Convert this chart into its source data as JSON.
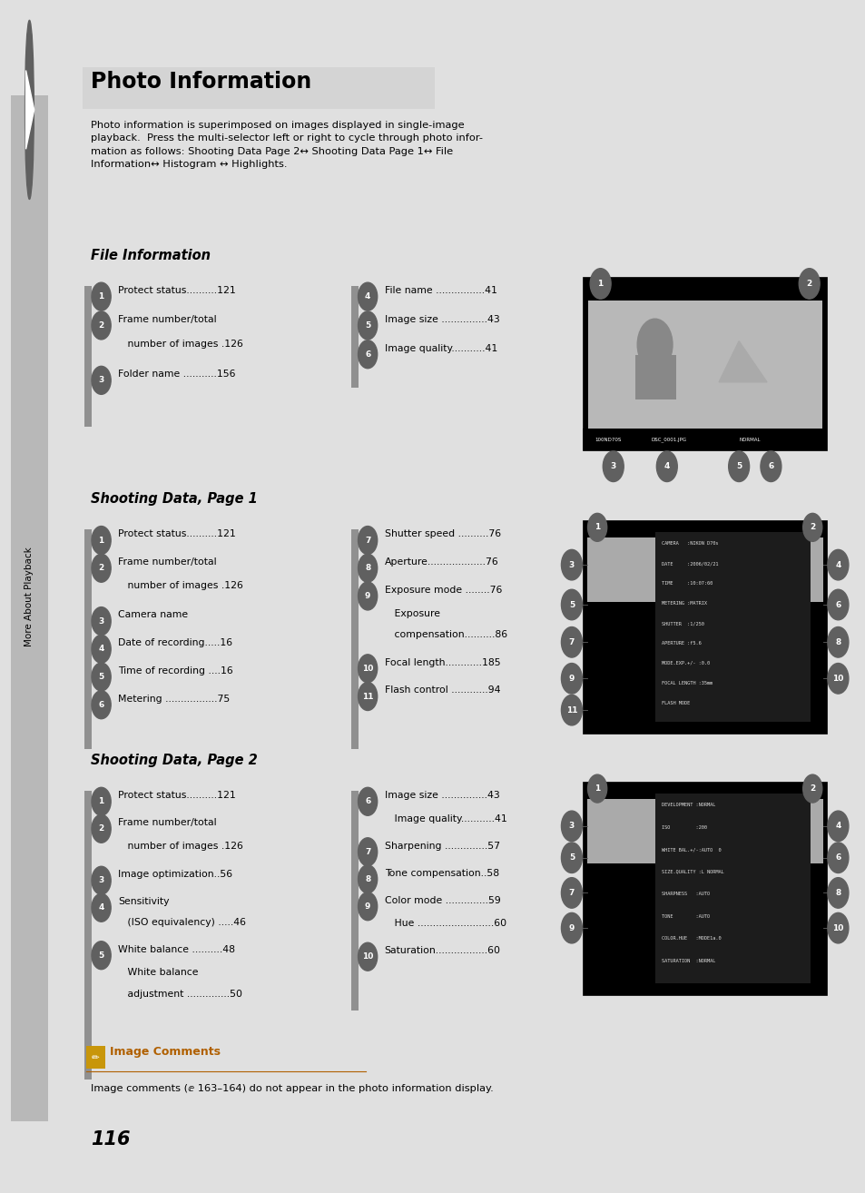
{
  "bg_color": "#e0e0e0",
  "page_bg": "#ffffff",
  "sidebar_color": "#b0b0b0",
  "sidebar_text": "More About Playback",
  "title": "Photo Information",
  "intro_text": "Photo information is superimposed on images displayed in single-image\nplayback.  Press the multi-selector left or right to cycle through photo infor-\nmation as follows: Shooting Data Page 2↔ Shooting Data Page 1↔ File\nInformation↔ Histogram ↔ Highlights.",
  "section1_title": "File Information",
  "section2_title": "Shooting Data, Page 1",
  "section3_title": "Shooting Data, Page 2",
  "note_title": "Image Comments",
  "note_text": "Image comments (ⅇ 163–164) do not appear in the photo information display.",
  "page_number": "116",
  "num_bg_color": "#808080",
  "section1_col1": [
    [
      "1",
      "Protect status..........121",
      0
    ],
    [
      "2",
      "Frame number/total",
      1
    ],
    [
      "",
      "   number of images .126",
      1.85
    ],
    [
      "3",
      "Folder name ...........156",
      2.9
    ]
  ],
  "section1_col2": [
    [
      "4",
      "File name ................41",
      0
    ],
    [
      "5",
      "Image size ...............43",
      1
    ],
    [
      "6",
      "Image quality...........41",
      2
    ]
  ],
  "section2_col1": [
    [
      "1",
      "Protect status..........121",
      0
    ],
    [
      "2",
      "Frame number/total",
      1
    ],
    [
      "",
      "   number of images .126",
      1.85
    ],
    [
      "3",
      "Camera name",
      2.9
    ],
    [
      "4",
      "Date of recording.....16",
      3.9
    ],
    [
      "5",
      "Time of recording ....16",
      4.9
    ],
    [
      "6",
      "Metering .................75",
      5.9
    ]
  ],
  "section2_col2": [
    [
      "7",
      "Shutter speed ..........76",
      0
    ],
    [
      "8",
      "Aperture...................76",
      1
    ],
    [
      "9",
      "Exposure mode ........76",
      2
    ],
    [
      "",
      "   Exposure",
      2.85
    ],
    [
      "",
      "   compensation..........86",
      3.6
    ],
    [
      "10",
      "Focal length............185",
      4.6
    ],
    [
      "11",
      "Flash control ............94",
      5.6
    ]
  ],
  "section3_col1": [
    [
      "1",
      "Protect status..........121",
      0
    ],
    [
      "2",
      "Frame number/total",
      1
    ],
    [
      "",
      "   number of images .126",
      1.85
    ],
    [
      "3",
      "Image optimization..56",
      2.9
    ],
    [
      "4",
      "Sensitivity",
      3.9
    ],
    [
      "",
      "   (ISO equivalency) .....46",
      4.65
    ],
    [
      "5",
      "White balance ..........48",
      5.65
    ],
    [
      "",
      "   White balance",
      6.5
    ],
    [
      "",
      "   adjustment ..............50",
      7.3
    ]
  ],
  "section3_col2": [
    [
      "6",
      "Image size ...............43",
      0
    ],
    [
      "",
      "   Image quality...........41",
      0.85
    ],
    [
      "7",
      "Sharpening ..............57",
      1.85
    ],
    [
      "8",
      "Tone compensation..58",
      2.85
    ],
    [
      "9",
      "Color mode ..............59",
      3.85
    ],
    [
      "",
      "   Hue .........................60",
      4.7
    ],
    [
      "10",
      "Saturation.................60",
      5.7
    ]
  ],
  "data_panel2": [
    "CAMERA   :NIKON D70s",
    "DATE     :2006/02/21",
    "TIME     :10:07:60",
    "METERING :MATRIX",
    "SHUTTER  :1/250",
    "APERTURE :f5.6",
    "MODE.EXP.+/- :0.0",
    "FOCAL LENGTH :35mm",
    "FLASH MODE"
  ],
  "data_panel3": [
    "DEVELOPMENT :NORMAL",
    "ISO         :200",
    "WHITE BAL.+/-:AUTO  0",
    "SIZE.QUALITY :L NORMAL",
    "SHARPNESS   :AUTO",
    "TONE        :AUTO",
    "COLOR.HUE   :MODE1a.0",
    "SATURATION  :NORMAL"
  ]
}
